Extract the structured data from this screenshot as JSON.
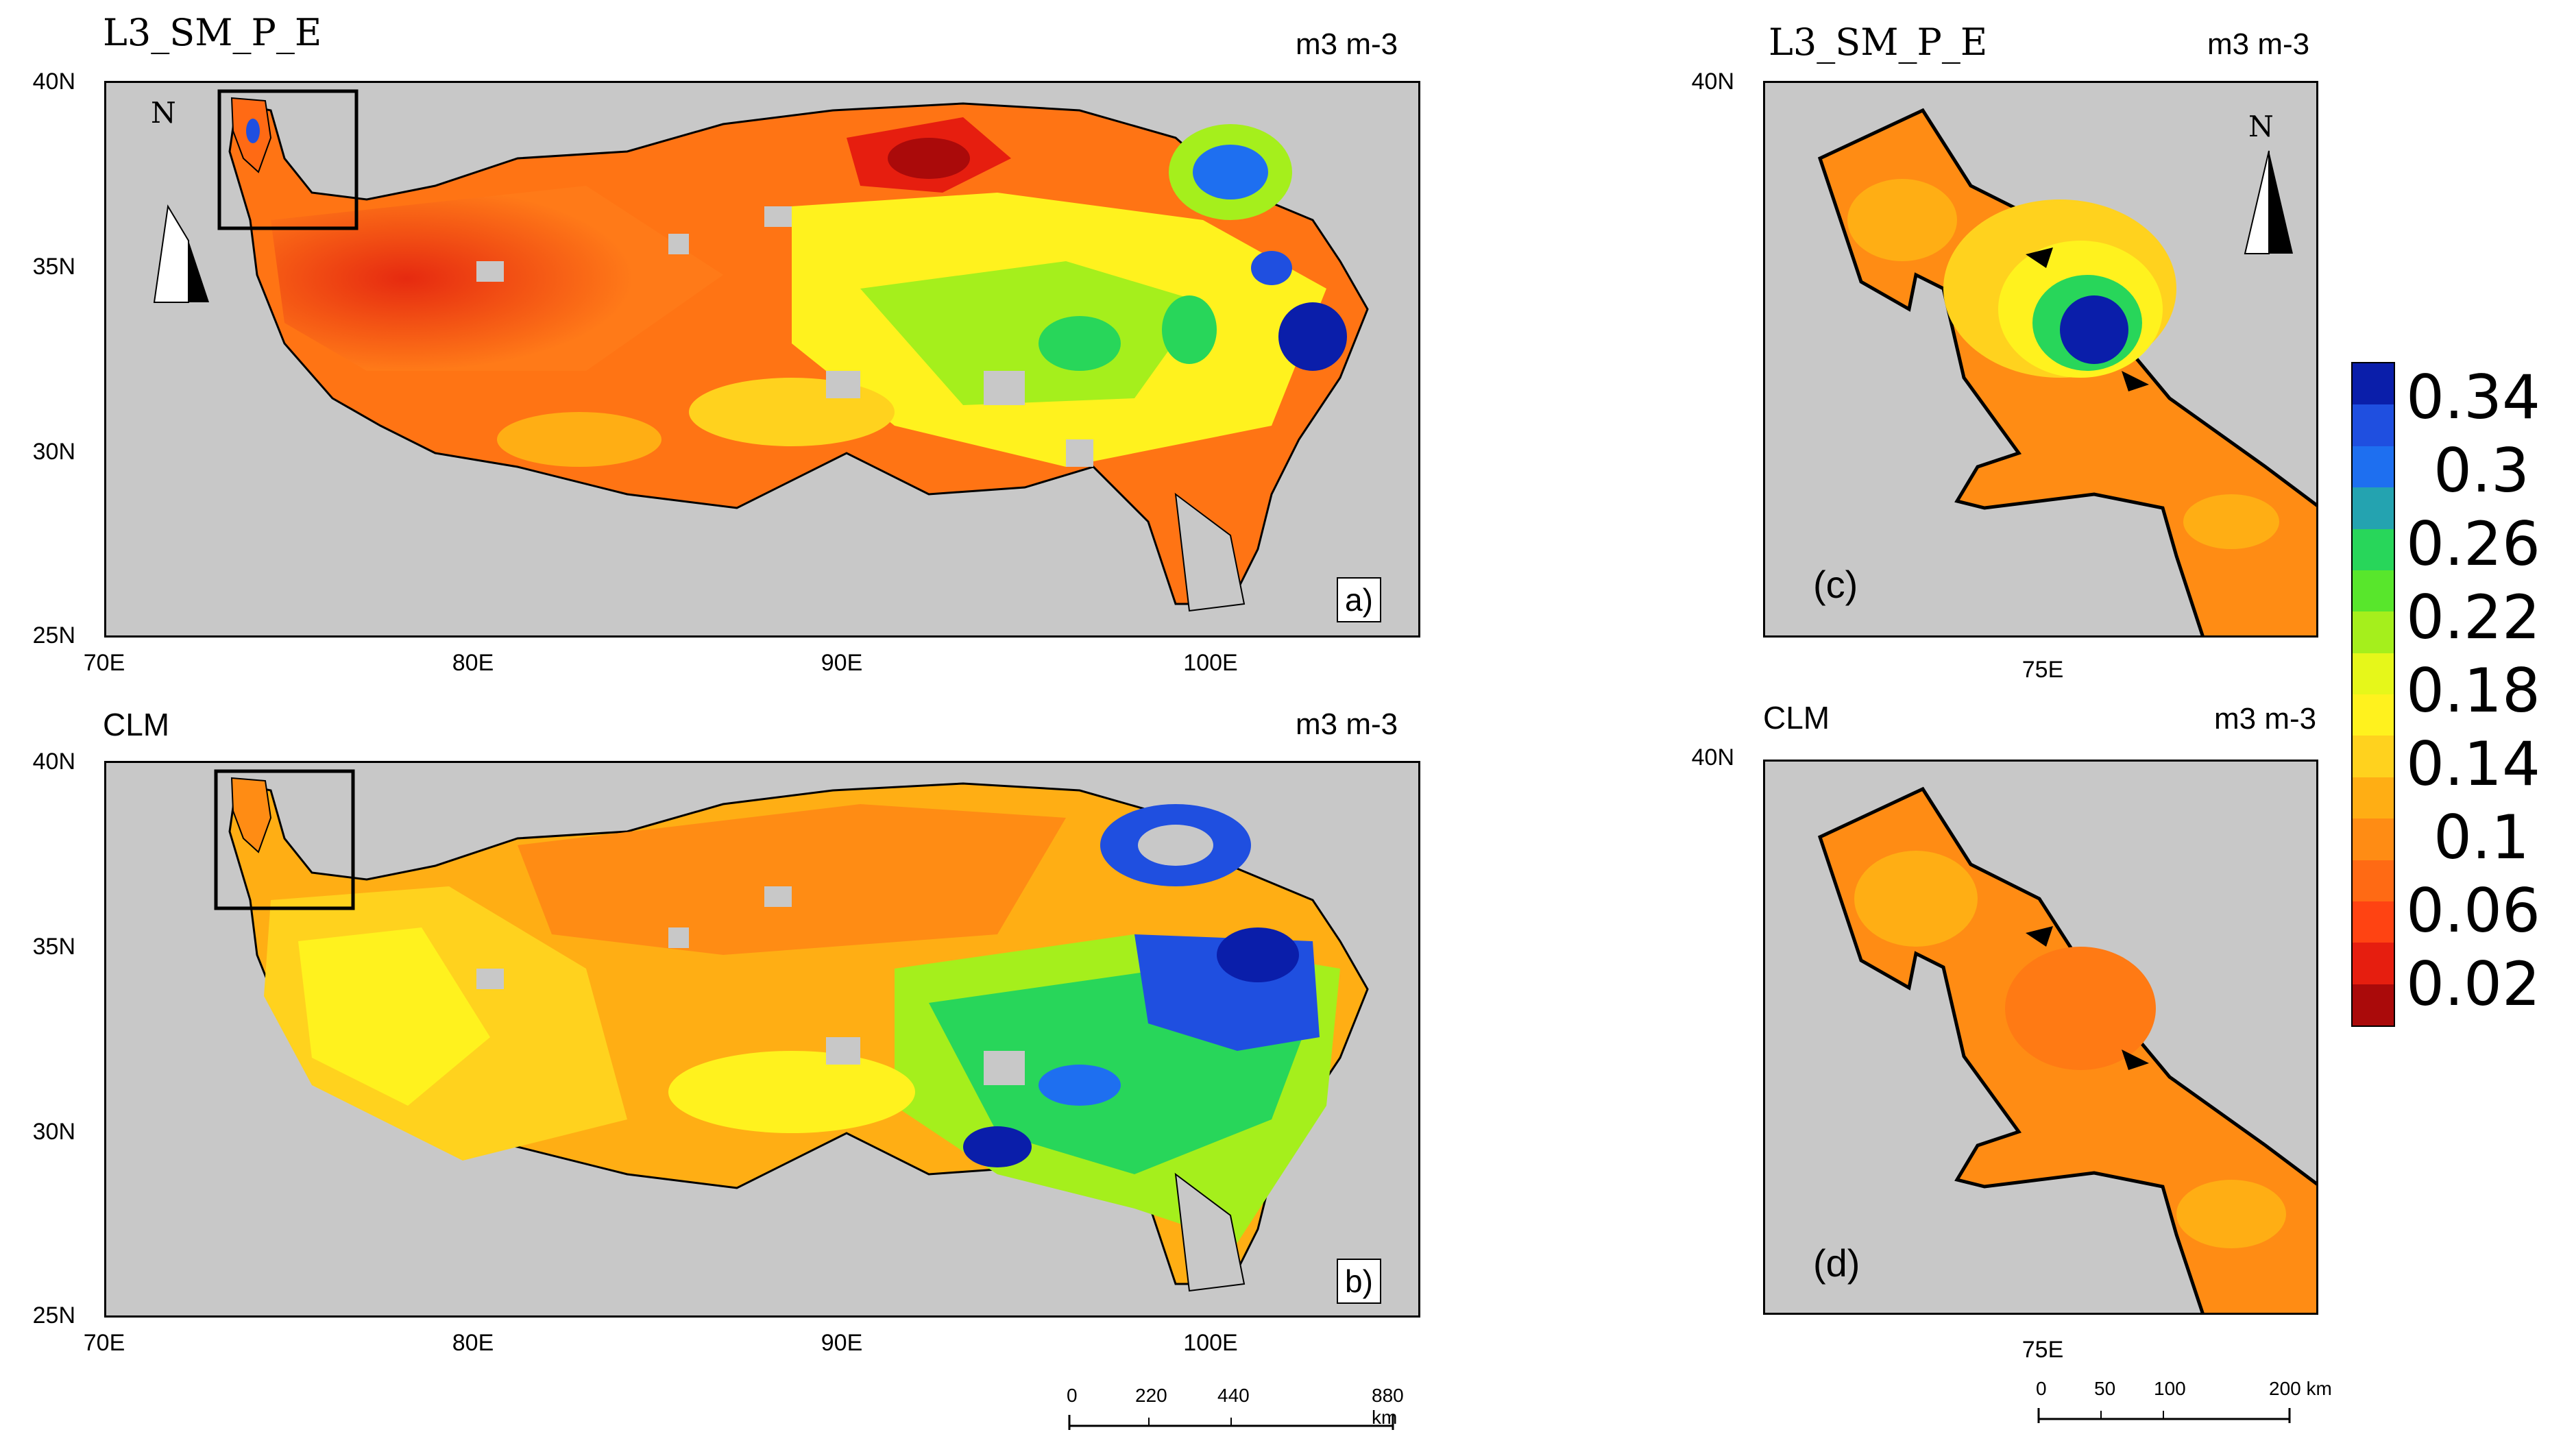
{
  "panels": {
    "a": {
      "title": "L3_SM_P_E",
      "unit": "m3 m-3",
      "label": "a)",
      "lat_labels": [
        "40N",
        "35N",
        "30N",
        "25N"
      ],
      "lon_labels": [
        "70E",
        "80E",
        "90E",
        "100E"
      ]
    },
    "b": {
      "title": "CLM",
      "unit": "m3 m-3",
      "label": "b)",
      "lat_labels": [
        "40N",
        "35N",
        "30N",
        "25N"
      ],
      "lon_labels": [
        "70E",
        "80E",
        "90E",
        "100E"
      ]
    },
    "c": {
      "title": "L3_SM_P_E",
      "unit": "m3 m-3",
      "label": "(c)",
      "lat_label": "40N",
      "lon_label": "75E"
    },
    "d": {
      "title": "CLM",
      "unit": "m3 m-3",
      "label": "(d)",
      "lat_label": "40N",
      "lon_label": "75E"
    }
  },
  "north_arrow": "N",
  "colorbar": {
    "labels": [
      "0.34",
      "0.3",
      "0.26",
      "0.22",
      "0.18",
      "0.14",
      "0.1",
      "0.06",
      "0.02"
    ],
    "colors": [
      "#0a1eaa",
      "#1f4fe0",
      "#1e6ff0",
      "#24a3b0",
      "#28d65a",
      "#58e62c",
      "#a5ef1c",
      "#e6f71a",
      "#fff21e",
      "#ffd21e",
      "#ffae14",
      "#ff8c14",
      "#ff6a14",
      "#ff4312",
      "#e61e0f",
      "#aa0a0a"
    ]
  },
  "scalebar_main": {
    "labels": [
      "0",
      "220",
      "440",
      "880 km"
    ]
  },
  "scalebar_zoom": {
    "labels": [
      "0",
      "50",
      "100",
      "200 km"
    ]
  },
  "map_legend": {
    "high": "#0a1eaa",
    "mid": "#28d65a",
    "low": "#ff6a14"
  }
}
